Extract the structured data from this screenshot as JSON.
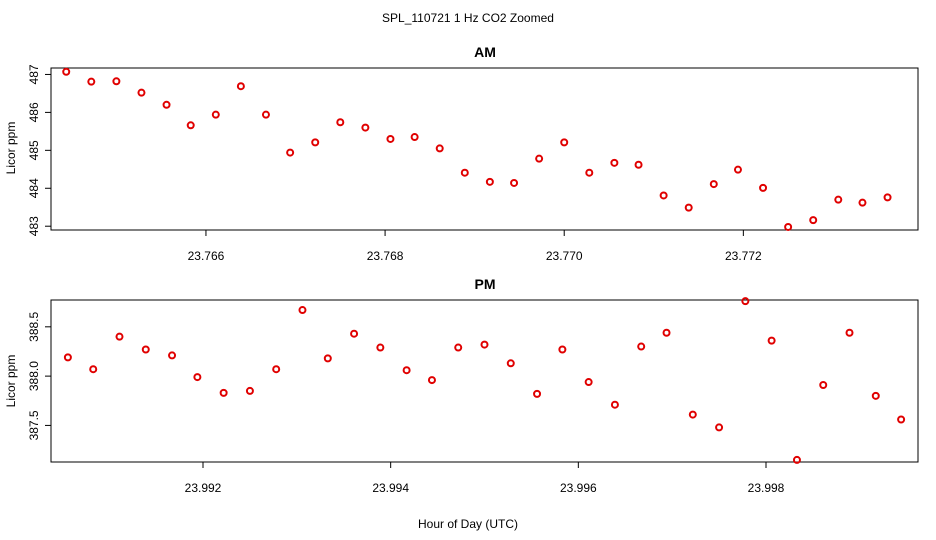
{
  "figure": {
    "title": "SPL_110721  1 Hz CO2 Zoomed",
    "xlabel": "Hour of Day (UTC)"
  },
  "colors": {
    "point": "#e00000",
    "axis": "#000000",
    "background": "#ffffff"
  },
  "chart_data": [
    {
      "type": "scatter",
      "title": "AM",
      "xlabel": "",
      "ylabel": "Licor ppm",
      "xlim": [
        23.76427,
        23.77395
      ],
      "ylim": [
        482.9,
        487.17
      ],
      "xticks": [
        23.766,
        23.768,
        23.77,
        23.772
      ],
      "xtick_labels": [
        "23.766",
        "23.768",
        "23.770",
        "23.772"
      ],
      "yticks": [
        483,
        484,
        485,
        486,
        487
      ],
      "ytick_labels": [
        "483",
        "484",
        "485",
        "486",
        "487"
      ],
      "x": [
        23.76444,
        23.76472,
        23.765,
        23.76528,
        23.76556,
        23.76583,
        23.76611,
        23.76639,
        23.76667,
        23.76694,
        23.76722,
        23.7675,
        23.76778,
        23.76806,
        23.76833,
        23.76861,
        23.76889,
        23.76917,
        23.76944,
        23.76972,
        23.77,
        23.77028,
        23.77056,
        23.77083,
        23.77111,
        23.77139,
        23.77167,
        23.77194,
        23.77222,
        23.7725,
        23.77278,
        23.77306,
        23.77333,
        23.77361
      ],
      "y": [
        487.07,
        486.81,
        486.82,
        486.52,
        486.2,
        485.66,
        485.94,
        486.69,
        485.94,
        484.94,
        485.21,
        485.74,
        485.6,
        485.3,
        485.35,
        485.05,
        484.41,
        484.17,
        484.14,
        484.78,
        485.21,
        484.41,
        484.67,
        484.62,
        483.81,
        483.49,
        484.11,
        484.49,
        484.01,
        482.98,
        483.16,
        483.7,
        483.62,
        483.76
      ]
    },
    {
      "type": "scatter",
      "title": "PM",
      "xlabel": "",
      "ylabel": "Licor ppm",
      "xlim": [
        23.99038,
        23.99962
      ],
      "ylim": [
        387.129,
        388.772
      ],
      "xticks": [
        23.992,
        23.994,
        23.996,
        23.998
      ],
      "xtick_labels": [
        "23.992",
        "23.994",
        "23.996",
        "23.998"
      ],
      "yticks": [
        387.5,
        388.0,
        388.5
      ],
      "ytick_labels": [
        "387.5",
        "388.0",
        "388.5"
      ],
      "x": [
        23.99056,
        23.99083,
        23.99111,
        23.99139,
        23.99167,
        23.99194,
        23.99222,
        23.9925,
        23.99278,
        23.99306,
        23.99333,
        23.99361,
        23.99389,
        23.99417,
        23.99444,
        23.99472,
        23.995,
        23.99528,
        23.99556,
        23.99583,
        23.99611,
        23.99639,
        23.99667,
        23.99694,
        23.99722,
        23.9975,
        23.99778,
        23.99806,
        23.99833,
        23.99861,
        23.99889,
        23.99917,
        23.99944
      ],
      "y": [
        388.19,
        388.07,
        388.4,
        388.27,
        388.21,
        387.99,
        387.83,
        387.85,
        388.07,
        388.67,
        388.18,
        388.43,
        388.29,
        388.06,
        387.96,
        388.29,
        388.32,
        388.13,
        387.82,
        388.27,
        387.94,
        387.71,
        388.3,
        388.44,
        387.61,
        387.48,
        388.76,
        388.36,
        387.15,
        387.91,
        388.44,
        387.8,
        387.56
      ]
    }
  ]
}
